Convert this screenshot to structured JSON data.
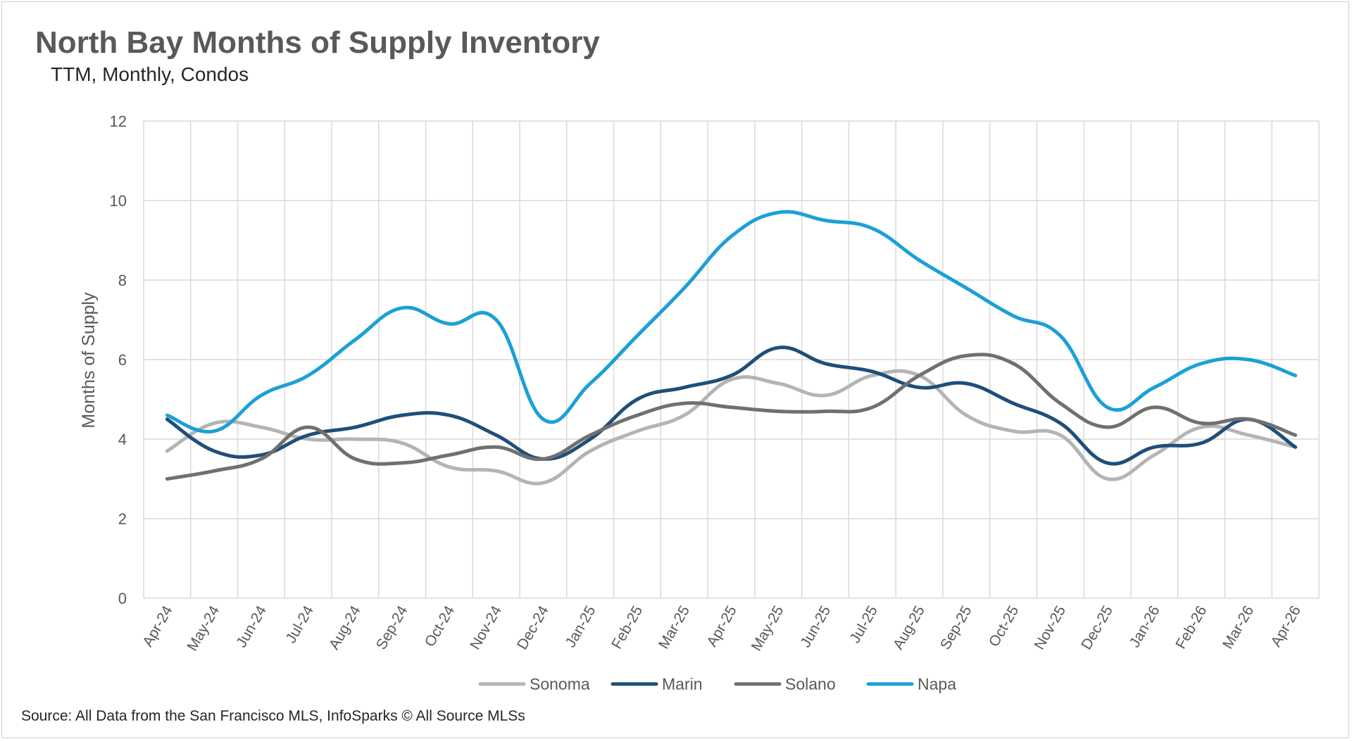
{
  "source": "Source: All Data from the San Francisco MLS, InfoSparks © All Source MLSs",
  "chart_data": {
    "type": "line",
    "title": "North Bay Months of Supply Inventory",
    "subtitle": "TTM, Monthly, Condos",
    "xlabel": "",
    "ylabel": "Months of Supply",
    "ylim": [
      0,
      12
    ],
    "yticks": [
      0,
      2,
      4,
      6,
      8,
      10,
      12
    ],
    "grid": true,
    "legend_position": "bottom",
    "categories": [
      "Apr-24",
      "May-24",
      "Jun-24",
      "Jul-24",
      "Aug-24",
      "Sep-24",
      "Oct-24",
      "Nov-24",
      "Dec-24",
      "Jan-25",
      "Feb-25",
      "Mar-25",
      "Apr-25",
      "May-25",
      "Jun-25",
      "Jul-25",
      "Aug-25",
      "Sep-25",
      "Oct-25",
      "Nov-25",
      "Dec-25",
      "Jan-26",
      "Feb-26",
      "Mar-26",
      "Apr-26"
    ],
    "series": [
      {
        "name": "Sonoma",
        "color": "#b4b4b4",
        "values": [
          3.7,
          4.4,
          4.3,
          4.0,
          4.0,
          3.9,
          3.3,
          3.2,
          2.9,
          3.7,
          4.2,
          4.6,
          5.5,
          5.4,
          5.1,
          5.6,
          5.6,
          4.6,
          4.2,
          4.1,
          3.0,
          3.6,
          4.3,
          4.1,
          3.8
        ]
      },
      {
        "name": "Marin",
        "color": "#1f4e79",
        "values": [
          4.5,
          3.7,
          3.6,
          4.1,
          4.3,
          4.6,
          4.6,
          4.1,
          3.5,
          4.0,
          5.0,
          5.3,
          5.6,
          6.3,
          5.9,
          5.7,
          5.3,
          5.4,
          4.9,
          4.4,
          3.4,
          3.8,
          3.9,
          4.5,
          3.8
        ]
      },
      {
        "name": "Solano",
        "color": "#707070",
        "values": [
          3.0,
          3.2,
          3.5,
          4.3,
          3.5,
          3.4,
          3.6,
          3.8,
          3.5,
          4.1,
          4.6,
          4.9,
          4.8,
          4.7,
          4.7,
          4.8,
          5.6,
          6.1,
          5.9,
          4.9,
          4.3,
          4.8,
          4.4,
          4.5,
          4.1
        ]
      },
      {
        "name": "Napa",
        "color": "#1ba0d6",
        "values": [
          4.6,
          4.2,
          5.1,
          5.6,
          6.5,
          7.3,
          6.9,
          7.0,
          4.5,
          5.4,
          6.6,
          7.8,
          9.1,
          9.7,
          9.5,
          9.3,
          8.5,
          7.8,
          7.1,
          6.6,
          4.8,
          5.3,
          5.9,
          6.0,
          5.6
        ]
      }
    ]
  }
}
